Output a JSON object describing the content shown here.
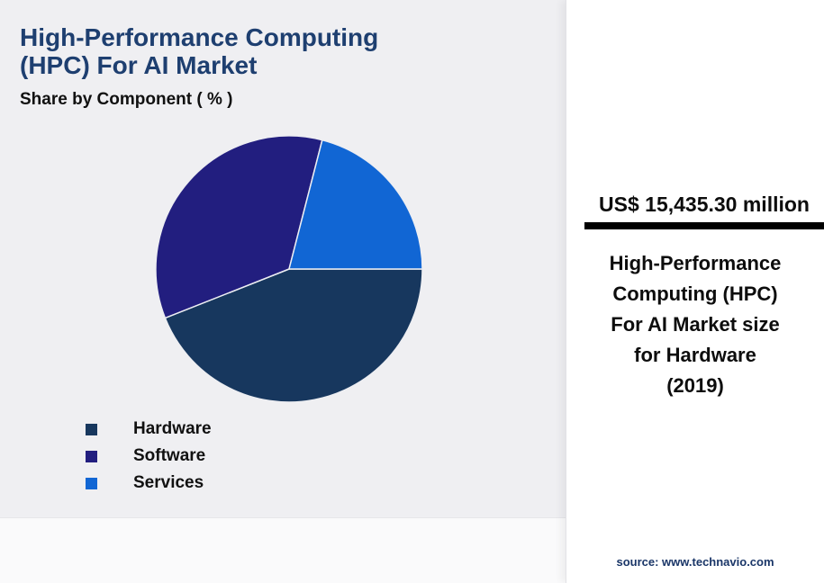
{
  "header": {
    "title_line1": "High-Performance Computing",
    "title_line2": "(HPC) For AI Market",
    "subtitle": "Share by Component ( % )"
  },
  "chart_data": {
    "type": "pie",
    "title": "Share by Component ( % )",
    "categories": [
      "Hardware",
      "Software",
      "Services"
    ],
    "values": [
      44,
      35,
      21
    ],
    "colors": [
      "#17375e",
      "#221e7f",
      "#1166d4"
    ],
    "legend_position": "bottom-left",
    "start_angle_deg": 0,
    "direction": "clockwise"
  },
  "panel": {
    "value": "US$ 15,435.30 million",
    "description_lines": [
      "High-Performance",
      "Computing (HPC)",
      "For AI Market size",
      "for Hardware",
      "(2019)"
    ],
    "source": "source: www.technavio.com"
  },
  "colors": {
    "title_text": "#1e3f70",
    "accent_bar": "#000000",
    "source_text": "#1a3668",
    "background": "#efeff2",
    "panel_background": "#ffffff"
  }
}
